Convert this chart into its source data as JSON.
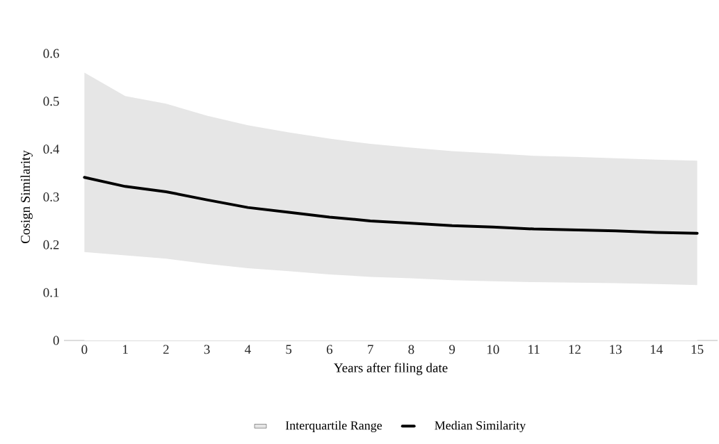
{
  "chart_data": {
    "type": "line",
    "categories": [
      "0",
      "1",
      "2",
      "3",
      "4",
      "5",
      "6",
      "7",
      "8",
      "9",
      "10",
      "11",
      "12",
      "13",
      "14",
      "15"
    ],
    "xlabel": "Years after filing date",
    "ylabel": "Cosign Similarity",
    "ylim": [
      0,
      0.6
    ],
    "yticks": [
      0,
      0.1,
      0.2,
      0.3,
      0.4,
      0.5,
      0.6
    ],
    "legend": "bottom",
    "stacked": true,
    "series": [
      {
        "type": "area",
        "color": "#ffffff",
        "values": [
          0.185,
          0.178,
          0.171,
          0.16,
          0.151,
          0.145,
          0.138,
          0.133,
          0.13,
          0.126,
          0.124,
          0.122,
          0.121,
          0.12,
          0.118,
          0.116
        ]
      },
      {
        "name": "Interquartile Range",
        "type": "area",
        "color": "#e6e6e6",
        "values": [
          0.375,
          0.333,
          0.324,
          0.31,
          0.299,
          0.29,
          0.284,
          0.278,
          0.273,
          0.27,
          0.267,
          0.264,
          0.263,
          0.261,
          0.26,
          0.26
        ]
      },
      {
        "name": "Median Similarity",
        "color": "#000000",
        "values": [
          0.341,
          0.322,
          0.311,
          0.294,
          0.278,
          0.268,
          0.258,
          0.25,
          0.245,
          0.24,
          0.237,
          0.233,
          0.231,
          0.229,
          0.226,
          0.224
        ]
      }
    ]
  }
}
